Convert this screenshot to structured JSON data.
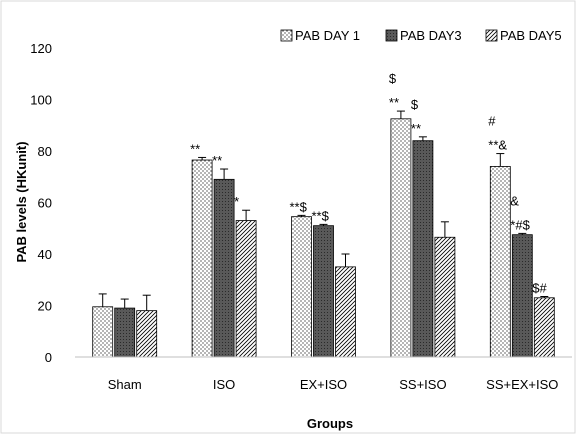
{
  "chart_data": {
    "type": "bar",
    "title": "",
    "xlabel": "Groups",
    "ylabel": "PAB levels (HKunit)",
    "ylim": [
      0,
      120
    ],
    "yticks": [
      0,
      20,
      40,
      60,
      80,
      100,
      120
    ],
    "grid": false,
    "legend_position": "top-right",
    "categories": [
      "Sham",
      "ISO",
      "EX+ISO",
      "SS+ISO",
      "SS+EX+ISO"
    ],
    "series": [
      {
        "name": "PAB DAY 1",
        "pattern": "dots",
        "values": [
          19.5,
          76.5,
          54.5,
          92.5,
          74
        ],
        "errors": [
          5,
          1,
          0.5,
          3,
          5
        ],
        "annotations": [
          "",
          "**",
          "**$",
          "$|**",
          "#|**&"
        ]
      },
      {
        "name": "PAB DAY3",
        "pattern": "dark",
        "values": [
          19,
          69,
          51,
          84,
          47.5
        ],
        "errors": [
          3.5,
          4,
          0.5,
          1.5,
          0.5
        ],
        "annotations": [
          "",
          "**",
          "**$",
          "$|**",
          "&|*#$"
        ]
      },
      {
        "name": "PAB DAY5",
        "pattern": "hatch",
        "values": [
          18,
          53,
          35,
          46.5,
          23
        ],
        "errors": [
          6,
          4,
          5,
          6,
          0.5
        ],
        "annotations": [
          "",
          "*",
          "",
          "",
          "$#"
        ]
      }
    ]
  },
  "colors": {
    "frame": "#d9d9d9",
    "bar_outline": "#000000",
    "dark_fill": "#595959"
  }
}
